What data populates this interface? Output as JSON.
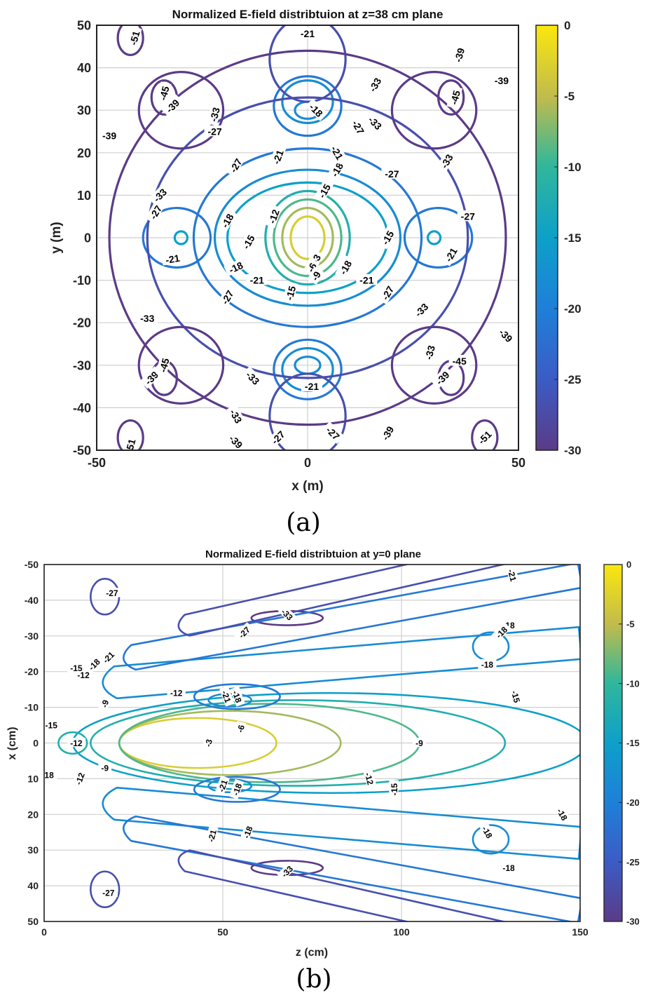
{
  "chart_data": [
    {
      "panel_caption": "(a)",
      "type": "contour",
      "title": "Normalized E-field distribtuion at z=38 cm plane",
      "xlabel": "x (m)",
      "ylabel": "y (m)",
      "xlim": [
        -50,
        50
      ],
      "ylim": [
        -50,
        50
      ],
      "y_reversed": false,
      "xticks": [
        "-50",
        "0",
        "50"
      ],
      "yticks": [
        "50",
        "40",
        "30",
        "20",
        "10",
        "0",
        "-10",
        "-20",
        "-30",
        "-40",
        "-50"
      ],
      "grid": true,
      "colorbar": {
        "range": [
          -30,
          0
        ],
        "ticks": [
          "0",
          "-5",
          "-10",
          "-15",
          "-20",
          "-25",
          "-30"
        ]
      },
      "contours": [
        {
          "level": -3,
          "kind": "ellipse",
          "cx": 0,
          "cy": 0,
          "rx": 4,
          "ry": 5
        },
        {
          "level": -6,
          "kind": "ellipse",
          "cx": 0,
          "cy": 0,
          "rx": 6,
          "ry": 7
        },
        {
          "level": -9,
          "kind": "ellipse",
          "cx": 0,
          "cy": 0,
          "rx": 8,
          "ry": 9
        },
        {
          "level": -12,
          "kind": "ellipse",
          "cx": 0,
          "cy": 0,
          "rx": 10,
          "ry": 11
        },
        {
          "level": -15,
          "kind": "ellipse",
          "cx": 0,
          "cy": 0,
          "rx": 19,
          "ry": 13
        },
        {
          "level": -18,
          "kind": "ellipse",
          "cx": 0,
          "cy": 0,
          "rx": 22,
          "ry": 16
        },
        {
          "level": -21,
          "kind": "ellipse",
          "cx": 0,
          "cy": 0,
          "rx": 27,
          "ry": 21
        },
        {
          "level": -18,
          "kind": "ellipse",
          "cx": 0,
          "cy": 30,
          "rx": 3,
          "ry": 2
        },
        {
          "level": -18,
          "kind": "ellipse",
          "cx": 0,
          "cy": 32,
          "rx": 6,
          "ry": 5
        },
        {
          "level": -21,
          "kind": "ellipse",
          "cx": 0,
          "cy": 31,
          "rx": 8,
          "ry": 7
        },
        {
          "level": -18,
          "kind": "ellipse",
          "cx": 0,
          "cy": -30,
          "rx": 3,
          "ry": 2
        },
        {
          "level": -18,
          "kind": "ellipse",
          "cx": 0,
          "cy": -31,
          "rx": 6,
          "ry": 5
        },
        {
          "level": -21,
          "kind": "ellipse",
          "cx": 0,
          "cy": -31,
          "rx": 8,
          "ry": 7
        },
        {
          "level": -15,
          "kind": "ellipse",
          "cx": 30,
          "cy": 0,
          "rx": 1.5,
          "ry": 1.5
        },
        {
          "level": -15,
          "kind": "ellipse",
          "cx": -30,
          "cy": 0,
          "rx": 1.5,
          "ry": 1.5
        },
        {
          "level": -21,
          "kind": "ellipse",
          "cx": 31,
          "cy": 0,
          "rx": 8,
          "ry": 7
        },
        {
          "level": -21,
          "kind": "ellipse",
          "cx": -31,
          "cy": 0,
          "rx": 8,
          "ry": 7
        },
        {
          "level": -27,
          "kind": "ellipse",
          "cx": 0,
          "cy": 0,
          "rx": 38,
          "ry": 33
        },
        {
          "level": -27,
          "kind": "ellipse",
          "cx": 0,
          "cy": 42,
          "rx": 9,
          "ry": 10
        },
        {
          "level": -27,
          "kind": "ellipse",
          "cx": 0,
          "cy": -42,
          "rx": 9,
          "ry": 10
        },
        {
          "level": -33,
          "kind": "ellipse",
          "cx": 0,
          "cy": 0,
          "rx": 47,
          "ry": 44
        },
        {
          "level": -39,
          "kind": "ellipse",
          "cx": -30,
          "cy": 30,
          "rx": 10,
          "ry": 9
        },
        {
          "level": -39,
          "kind": "ellipse",
          "cx": 30,
          "cy": 30,
          "rx": 10,
          "ry": 9
        },
        {
          "level": -39,
          "kind": "ellipse",
          "cx": -30,
          "cy": -30,
          "rx": 10,
          "ry": 9
        },
        {
          "level": -39,
          "kind": "ellipse",
          "cx": 30,
          "cy": -30,
          "rx": 10,
          "ry": 9
        },
        {
          "level": -45,
          "kind": "ellipse",
          "cx": -34,
          "cy": 33,
          "rx": 3,
          "ry": 4
        },
        {
          "level": -45,
          "kind": "ellipse",
          "cx": 34,
          "cy": 33,
          "rx": 3,
          "ry": 4
        },
        {
          "level": -45,
          "kind": "ellipse",
          "cx": -34,
          "cy": -33,
          "rx": 3,
          "ry": 4
        },
        {
          "level": -45,
          "kind": "ellipse",
          "cx": 34,
          "cy": -33,
          "rx": 3,
          "ry": 4
        },
        {
          "level": -51,
          "kind": "ellipse",
          "cx": -42,
          "cy": 47,
          "rx": 3,
          "ry": 4
        },
        {
          "level": -51,
          "kind": "ellipse",
          "cx": 42,
          "cy": -47,
          "rx": 3,
          "ry": 4
        },
        {
          "level": -51,
          "kind": "ellipse",
          "cx": -42,
          "cy": -47,
          "rx": 3,
          "ry": 4
        }
      ],
      "contour_labels": [
        {
          "text": "-3",
          "x": 2,
          "y": -5,
          "rot": -60
        },
        {
          "text": "-6",
          "x": 1,
          "y": -7,
          "rot": -60
        },
        {
          "text": "-9",
          "x": 2,
          "y": -9,
          "rot": -60
        },
        {
          "text": "-12",
          "x": -8,
          "y": 5,
          "rot": -70
        },
        {
          "text": "-15",
          "x": 4,
          "y": 11,
          "rot": -60
        },
        {
          "text": "-15",
          "x": -14,
          "y": -1,
          "rot": -60
        },
        {
          "text": "-15",
          "x": 19,
          "y": 0,
          "rot": -60
        },
        {
          "text": "-15",
          "x": -4,
          "y": -13,
          "rot": -75
        },
        {
          "text": "-18",
          "x": 7,
          "y": 16,
          "rot": -60
        },
        {
          "text": "-18",
          "x": 2,
          "y": 30,
          "rot": 45
        },
        {
          "text": "-18",
          "x": -19,
          "y": 4,
          "rot": -60
        },
        {
          "text": "-18",
          "x": -17,
          "y": -7,
          "rot": -25
        },
        {
          "text": "-18",
          "x": 9,
          "y": -7,
          "rot": -60
        },
        {
          "text": "-21",
          "x": -7,
          "y": 19,
          "rot": -70
        },
        {
          "text": "-21",
          "x": 7,
          "y": 20,
          "rot": 60
        },
        {
          "text": "-21",
          "x": -32,
          "y": -5,
          "rot": -10
        },
        {
          "text": "-21",
          "x": 34,
          "y": -4,
          "rot": -60
        },
        {
          "text": "-21",
          "x": -12,
          "y": -10,
          "rot": 0
        },
        {
          "text": "-21",
          "x": 14,
          "y": -10,
          "rot": 0
        },
        {
          "text": "-21",
          "x": 0,
          "y": 48,
          "rot": 0
        },
        {
          "text": "-21",
          "x": 1,
          "y": -35,
          "rot": 0
        },
        {
          "text": "-27",
          "x": -22,
          "y": 25,
          "rot": 0
        },
        {
          "text": "-27",
          "x": 12,
          "y": 26,
          "rot": 60
        },
        {
          "text": "-27",
          "x": -17,
          "y": 17,
          "rot": -60
        },
        {
          "text": "-27",
          "x": 20,
          "y": 15,
          "rot": 0
        },
        {
          "text": "-27",
          "x": -36,
          "y": 6,
          "rot": -60
        },
        {
          "text": "-27",
          "x": 38,
          "y": 5,
          "rot": 0
        },
        {
          "text": "-27",
          "x": -19,
          "y": -14,
          "rot": -60
        },
        {
          "text": "-27",
          "x": 19,
          "y": -13,
          "rot": -60
        },
        {
          "text": "-27",
          "x": -7,
          "y": -47,
          "rot": -45
        },
        {
          "text": "-27",
          "x": 6,
          "y": -46,
          "rot": 45
        },
        {
          "text": "-33",
          "x": -22,
          "y": 29,
          "rot": -75
        },
        {
          "text": "-33",
          "x": 16,
          "y": 36,
          "rot": -60
        },
        {
          "text": "-33",
          "x": 16,
          "y": 27,
          "rot": 45
        },
        {
          "text": "-33",
          "x": -35,
          "y": 10,
          "rot": -45
        },
        {
          "text": "-33",
          "x": 33,
          "y": 18,
          "rot": -60
        },
        {
          "text": "-33",
          "x": -38,
          "y": -19,
          "rot": 0
        },
        {
          "text": "-33",
          "x": 27,
          "y": -17,
          "rot": -45
        },
        {
          "text": "-33",
          "x": -13,
          "y": -33,
          "rot": 45
        },
        {
          "text": "-33",
          "x": -17,
          "y": -42,
          "rot": 60
        },
        {
          "text": "-33",
          "x": 29,
          "y": -27,
          "rot": -75
        },
        {
          "text": "-39",
          "x": -47,
          "y": 24,
          "rot": 0
        },
        {
          "text": "-39",
          "x": -32,
          "y": 31,
          "rot": -45
        },
        {
          "text": "-39",
          "x": 46,
          "y": 37,
          "rot": 0
        },
        {
          "text": "-39",
          "x": 36,
          "y": 43,
          "rot": -75
        },
        {
          "text": "-39",
          "x": -37,
          "y": -33,
          "rot": -45
        },
        {
          "text": "-39",
          "x": 32,
          "y": -33,
          "rot": -45
        },
        {
          "text": "-39",
          "x": 47,
          "y": -23,
          "rot": 45
        },
        {
          "text": "-39",
          "x": -17,
          "y": -48,
          "rot": 45
        },
        {
          "text": "-39",
          "x": 19,
          "y": -46,
          "rot": -60
        },
        {
          "text": "-45",
          "x": -34,
          "y": 34,
          "rot": -75
        },
        {
          "text": "-45",
          "x": 35,
          "y": 33,
          "rot": -75
        },
        {
          "text": "-45",
          "x": -34,
          "y": -30,
          "rot": -75
        },
        {
          "text": "-45",
          "x": 36,
          "y": -29,
          "rot": 0
        },
        {
          "text": "-51",
          "x": -41,
          "y": 47,
          "rot": -75
        },
        {
          "text": "-51",
          "x": 42,
          "y": -47,
          "rot": -45
        },
        {
          "text": "-51",
          "x": -42,
          "y": -49,
          "rot": -75
        }
      ]
    },
    {
      "panel_caption": "(b)",
      "type": "contour",
      "title": "Normalized E-field distribtuion at y=0 plane",
      "xlabel": "z (cm)",
      "ylabel": "x (cm)",
      "xlim": [
        0,
        150
      ],
      "ylim": [
        -50,
        50
      ],
      "y_reversed": true,
      "xticks": [
        "0",
        "50",
        "100",
        "150"
      ],
      "yticks": [
        "-50",
        "-40",
        "-30",
        "-20",
        "-10",
        "0",
        "10",
        "20",
        "30",
        "40",
        "50"
      ],
      "grid": true,
      "colorbar": {
        "range": [
          -30,
          0
        ],
        "ticks": [
          "0",
          "-5",
          "-10",
          "-15",
          "-20",
          "-25",
          "-30"
        ]
      },
      "contours": [
        {
          "level": -3,
          "kind": "ellipse",
          "cx": 43,
          "cy": 0,
          "rx": 22,
          "ry": 7
        },
        {
          "level": -6,
          "kind": "ellipse",
          "cx": 52,
          "cy": 0,
          "rx": 31,
          "ry": 9
        },
        {
          "level": -9,
          "kind": "ellipse",
          "cx": 63,
          "cy": 0,
          "rx": 42,
          "ry": 11
        },
        {
          "level": -12,
          "kind": "ellipse",
          "cx": 71,
          "cy": 0,
          "rx": 58,
          "ry": 12
        },
        {
          "level": -15,
          "kind": "ellipse",
          "cx": 80,
          "cy": 0,
          "rx": 72,
          "ry": 14
        },
        {
          "level": -18,
          "kind": "ellipse",
          "cx": 52,
          "cy": -12,
          "rx": 6,
          "ry": 1.8
        },
        {
          "level": -18,
          "kind": "ellipse",
          "cx": 52,
          "cy": 12,
          "rx": 6,
          "ry": 1.8
        },
        {
          "level": -21,
          "kind": "ellipse",
          "cx": 54,
          "cy": -13,
          "rx": 12,
          "ry": 3.5
        },
        {
          "level": -21,
          "kind": "ellipse",
          "cx": 54,
          "cy": 13,
          "rx": 12,
          "ry": 3.5
        },
        {
          "level": -33,
          "kind": "ellipse",
          "cx": 68,
          "cy": -35,
          "rx": 10,
          "ry": 2
        },
        {
          "level": -33,
          "kind": "ellipse",
          "cx": 68,
          "cy": 35,
          "rx": 10,
          "ry": 2
        },
        {
          "level": -27,
          "kind": "ellipse",
          "cx": 17,
          "cy": -41,
          "rx": 4,
          "ry": 5
        },
        {
          "level": -27,
          "kind": "ellipse",
          "cx": 17,
          "cy": 41,
          "rx": 4,
          "ry": 5
        },
        {
          "level": -12,
          "kind": "ellipse",
          "cx": 8,
          "cy": 0,
          "rx": 4,
          "ry": 3
        },
        {
          "level": -18,
          "kind": "ellipse",
          "cx": 125,
          "cy": -27,
          "rx": 5,
          "ry": 4
        },
        {
          "level": -18,
          "kind": "ellipse",
          "cx": 125,
          "cy": 27,
          "rx": 5,
          "ry": 4
        },
        {
          "level": -18,
          "kind": "beam",
          "z0": 20,
          "x0": -17,
          "z1": 150,
          "x1": -28,
          "w": 9
        },
        {
          "level": -18,
          "kind": "beam",
          "z0": 20,
          "x0": 17,
          "z1": 150,
          "x1": 28,
          "w": 9
        },
        {
          "level": -21,
          "kind": "beam",
          "z0": 25,
          "x0": -24,
          "z1": 150,
          "x1": -47,
          "w": 7
        },
        {
          "level": -21,
          "kind": "beam",
          "z0": 25,
          "x0": 24,
          "z1": 150,
          "x1": 47,
          "w": 7
        },
        {
          "level": -27,
          "kind": "beam",
          "z0": 40,
          "x0": -33,
          "z1": 150,
          "x1": -58,
          "w": 6
        },
        {
          "level": -27,
          "kind": "beam",
          "z0": 40,
          "x0": 33,
          "z1": 150,
          "x1": 58,
          "w": 6
        }
      ],
      "contour_labels": [
        {
          "text": "-3",
          "x": 46,
          "y": 0,
          "rot": -75
        },
        {
          "text": "-6",
          "x": 55,
          "y": -4,
          "rot": -75
        },
        {
          "text": "-9",
          "x": 105,
          "y": 0,
          "rot": 0
        },
        {
          "text": "-9",
          "x": 17,
          "y": -11,
          "rot": -75
        },
        {
          "text": "-9",
          "x": 17,
          "y": 7,
          "rot": 0
        },
        {
          "text": "-12",
          "x": 11,
          "y": -19,
          "rot": 0
        },
        {
          "text": "-12",
          "x": 37,
          "y": -14,
          "rot": 0
        },
        {
          "text": "-12",
          "x": 9,
          "y": 0,
          "rot": 0
        },
        {
          "text": "-12",
          "x": 10,
          "y": 10,
          "rot": -70
        },
        {
          "text": "-12",
          "x": 91,
          "y": 10,
          "rot": 75
        },
        {
          "text": "-15",
          "x": 9,
          "y": -21,
          "rot": 0
        },
        {
          "text": "-15",
          "x": 2,
          "y": -5,
          "rot": 0
        },
        {
          "text": "-15",
          "x": 98,
          "y": 13,
          "rot": -90
        },
        {
          "text": "-15",
          "x": 132,
          "y": -13,
          "rot": 75
        },
        {
          "text": "-18",
          "x": 14,
          "y": -22,
          "rot": -45
        },
        {
          "text": "-18",
          "x": 54,
          "y": -13,
          "rot": 70
        },
        {
          "text": "-18",
          "x": 54,
          "y": 13,
          "rot": -70
        },
        {
          "text": "-18",
          "x": 57,
          "y": 25,
          "rot": -70
        },
        {
          "text": "-18",
          "x": 1,
          "y": 9,
          "rot": 0
        },
        {
          "text": "-18",
          "x": 130,
          "y": -33,
          "rot": 0
        },
        {
          "text": "-18",
          "x": 128,
          "y": -31,
          "rot": -45
        },
        {
          "text": "-18",
          "x": 124,
          "y": -22,
          "rot": 0
        },
        {
          "text": "-18",
          "x": 124,
          "y": 25,
          "rot": 60
        },
        {
          "text": "-18",
          "x": 130,
          "y": 35,
          "rot": 0
        },
        {
          "text": "-18",
          "x": 145,
          "y": 20,
          "rot": 60
        },
        {
          "text": "-21",
          "x": 18,
          "y": -24,
          "rot": -45
        },
        {
          "text": "-21",
          "x": 51,
          "y": -13,
          "rot": 70
        },
        {
          "text": "-21",
          "x": 50,
          "y": 12,
          "rot": -70
        },
        {
          "text": "-21",
          "x": 47,
          "y": 26,
          "rot": -75
        },
        {
          "text": "-21",
          "x": 131,
          "y": -47,
          "rot": 75
        },
        {
          "text": "-27",
          "x": 19,
          "y": -42,
          "rot": 0
        },
        {
          "text": "-27",
          "x": 56,
          "y": -31,
          "rot": -45
        },
        {
          "text": "-27",
          "x": 18,
          "y": 42,
          "rot": 0
        },
        {
          "text": "-33",
          "x": 68,
          "y": -36,
          "rot": 45
        },
        {
          "text": "-33",
          "x": 68,
          "y": 36,
          "rot": -45
        }
      ]
    }
  ]
}
